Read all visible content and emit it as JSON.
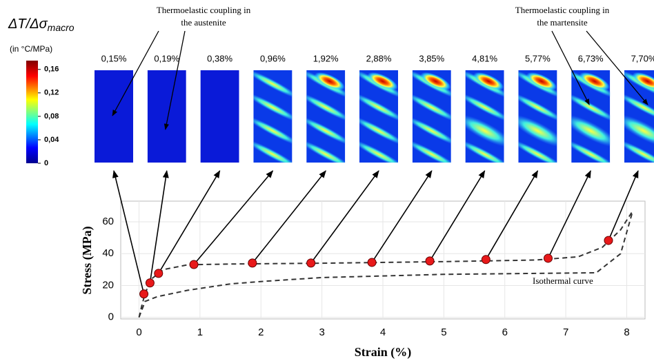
{
  "chart_data": {
    "type": "scatter",
    "x_label": "Strain (%)",
    "y_label": "Stress (MPa)",
    "x": [
      0.08,
      0.18,
      0.32,
      0.9,
      1.86,
      2.82,
      3.82,
      4.77,
      5.69,
      6.71,
      7.7
    ],
    "values": [
      14.7,
      21.6,
      27.6,
      33.2,
      34.1,
      34.1,
      34.5,
      35.4,
      36.3,
      37.1,
      48.3
    ],
    "color": "#e8191a",
    "curves": [
      {
        "x": [
          0,
          0.05,
          0.1,
          0.2,
          0.4,
          0.8,
          1.5,
          3,
          5,
          6.5,
          7.2,
          7.6,
          7.9,
          8.1
        ],
        "values": [
          0,
          8,
          15,
          24,
          30,
          33,
          33.5,
          34,
          35,
          36,
          38,
          44,
          55,
          67
        ],
        "color": "#333333"
      },
      {
        "x": [
          0,
          0.1,
          0.3,
          0.8,
          1.5,
          2,
          3,
          5,
          7.5,
          7.9,
          8.1
        ],
        "values": [
          0,
          10,
          13,
          17,
          21,
          22.5,
          25,
          27,
          28,
          40,
          67
        ],
        "color": "#333333"
      }
    ],
    "xlim": [
      -0.3,
      8.3
    ],
    "ylim": [
      -1,
      73
    ],
    "xticks": [
      0,
      1,
      2,
      3,
      4,
      5,
      6,
      7,
      8
    ],
    "yticks": [
      0,
      20,
      40,
      60
    ],
    "grid": true,
    "annotations": {
      "isothermal": "Isothermal curve",
      "austenite": [
        "Thermoelastic coupling in",
        "the austenite"
      ],
      "martensite": [
        "Thermoelastic coupling in",
        "the martensite"
      ]
    },
    "maps": {
      "labels": [
        "0,15%",
        "0,19%",
        "0,38%",
        "0,96%",
        "1,92%",
        "2,88%",
        "3,85%",
        "4,81%",
        "5,77%",
        "6,73%",
        "7,70%"
      ]
    },
    "colorbar": {
      "title": "ΔT/Δσ",
      "title_sub": "macro",
      "unit": "(in °C/MPa)",
      "lim": [
        0,
        0.175
      ],
      "ticks": [
        0,
        {
          "value": 0.04,
          "label": "0,04"
        },
        {
          "value": 0.08,
          "label": "0,08"
        },
        {
          "value": 0.12,
          "label": "0,12"
        },
        {
          "value": 0.16,
          "label": "0,16"
        }
      ]
    }
  }
}
